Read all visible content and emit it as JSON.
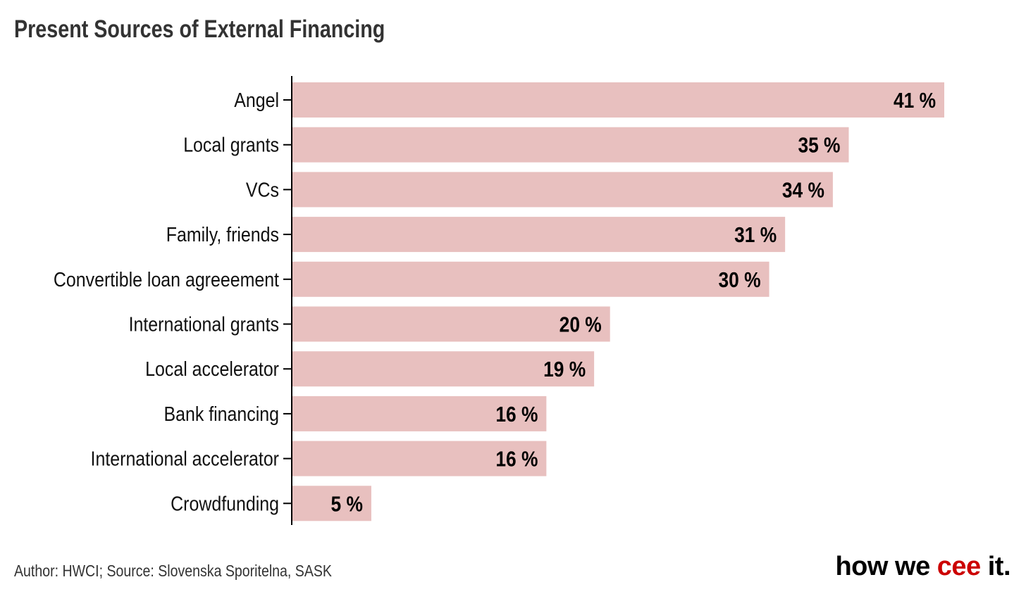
{
  "chart_data": {
    "type": "bar",
    "orientation": "horizontal",
    "title": "Present Sources of External Financing",
    "categories": [
      "Angel",
      "Local grants",
      "VCs",
      "Family, friends",
      "Convertible loan agreeement",
      "International grants",
      "Local accelerator",
      "Bank financing",
      "International accelerator",
      "Crowdfunding"
    ],
    "values": [
      41,
      35,
      34,
      31,
      30,
      20,
      19,
      16,
      16,
      5
    ],
    "value_suffix": " %",
    "xlim": [
      0,
      41
    ],
    "grid": false,
    "bar_color": "#e8c0bf"
  },
  "footer": {
    "source": "Author: HWCI; Source: Slovenska Sporitelna, SASK"
  },
  "logo": {
    "part1": "how we ",
    "part2": "cee",
    "part3": " it.",
    "accent": "#cc0000"
  }
}
